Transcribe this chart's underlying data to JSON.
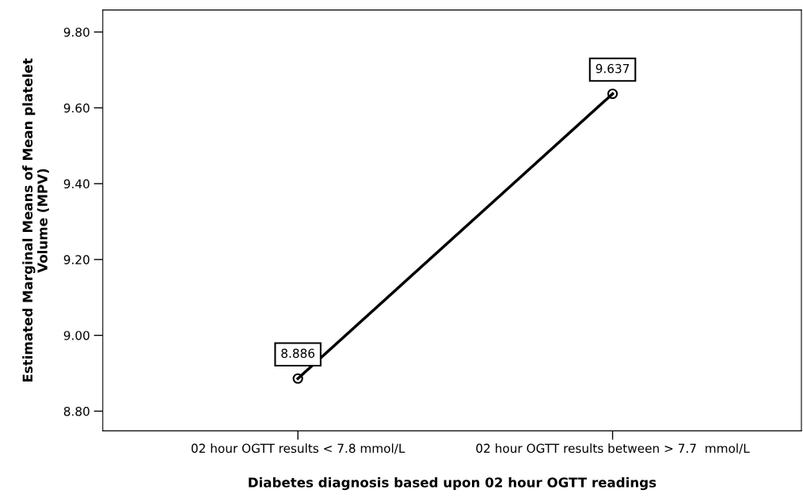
{
  "chart_data": {
    "type": "line",
    "xlabel": "Diabetes diagnosis based upon 02 hour OGTT readings",
    "ylabel": "Estimated Marginal Means of Mean platelet\nVolume (MPV)",
    "categories": [
      "02 hour OGTT results < 7.8 mmol/L",
      "02 hour OGTT results between > 7.7  mmol/L"
    ],
    "series": [
      {
        "color": "#000000",
        "values": [
          8.886,
          9.637
        ]
      }
    ],
    "ylim": [
      8.748,
      9.858
    ],
    "yticks": [
      {
        "value": 8.8,
        "label": "8.80"
      },
      {
        "value": 9.0,
        "label": "9.00"
      },
      {
        "value": 9.2,
        "label": "9.20"
      },
      {
        "value": 9.4,
        "label": "9.40"
      },
      {
        "value": 9.6,
        "label": "9.60"
      },
      {
        "value": 9.8,
        "label": "9.80"
      }
    ],
    "grid": false,
    "marker": "circle",
    "line_style": "solid",
    "data_labels": true
  }
}
